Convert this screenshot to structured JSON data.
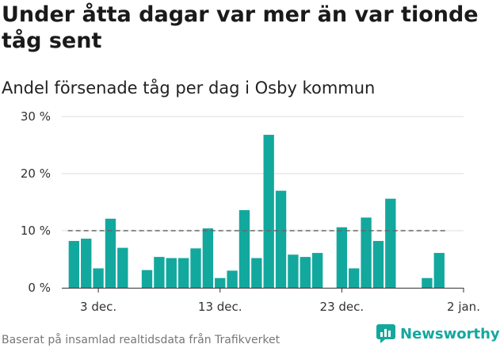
{
  "title": "Under åtta dagar var mer än var tionde tåg sent",
  "subtitle": "Andel försenade tåg per dag i Osby kommun",
  "source": "Baserat på insamlad realtidsdata från Trafikverket",
  "brand": "Newsworthy",
  "colors": {
    "bar": "#13a89e",
    "reference_line": "#666666",
    "grid": "#dddddd",
    "brand": "#13a89e"
  },
  "chart_data": {
    "type": "bar",
    "x_ticks": [
      "3 dec.",
      "13 dec.",
      "23 dec.",
      "2 jan."
    ],
    "y_ticks": [
      "0 %",
      "10 %",
      "20 %",
      "30 %"
    ],
    "ylim": [
      0,
      30
    ],
    "x_range": [
      "2023-11-30",
      "2024-01-02"
    ],
    "reference_line": 10,
    "grid": "horizontal",
    "points": [
      {
        "date": "2023-12-01",
        "value": 8.2
      },
      {
        "date": "2023-12-02",
        "value": 8.6
      },
      {
        "date": "2023-12-03",
        "value": 3.4
      },
      {
        "date": "2023-12-04",
        "value": 12.1
      },
      {
        "date": "2023-12-05",
        "value": 7.0
      },
      {
        "date": "2023-12-07",
        "value": 3.1
      },
      {
        "date": "2023-12-08",
        "value": 5.4
      },
      {
        "date": "2023-12-09",
        "value": 5.2
      },
      {
        "date": "2023-12-10",
        "value": 5.2
      },
      {
        "date": "2023-12-11",
        "value": 6.9
      },
      {
        "date": "2023-12-12",
        "value": 10.4
      },
      {
        "date": "2023-12-13",
        "value": 1.7
      },
      {
        "date": "2023-12-14",
        "value": 3.0
      },
      {
        "date": "2023-12-15",
        "value": 13.6
      },
      {
        "date": "2023-12-16",
        "value": 5.2
      },
      {
        "date": "2023-12-17",
        "value": 26.8
      },
      {
        "date": "2023-12-18",
        "value": 17.0
      },
      {
        "date": "2023-12-19",
        "value": 5.8
      },
      {
        "date": "2023-12-20",
        "value": 5.4
      },
      {
        "date": "2023-12-21",
        "value": 6.1
      },
      {
        "date": "2023-12-23",
        "value": 10.6
      },
      {
        "date": "2023-12-24",
        "value": 3.4
      },
      {
        "date": "2023-12-25",
        "value": 12.3
      },
      {
        "date": "2023-12-26",
        "value": 8.2
      },
      {
        "date": "2023-12-27",
        "value": 15.6
      },
      {
        "date": "2023-12-30",
        "value": 1.7
      },
      {
        "date": "2023-12-31",
        "value": 6.1
      }
    ]
  }
}
